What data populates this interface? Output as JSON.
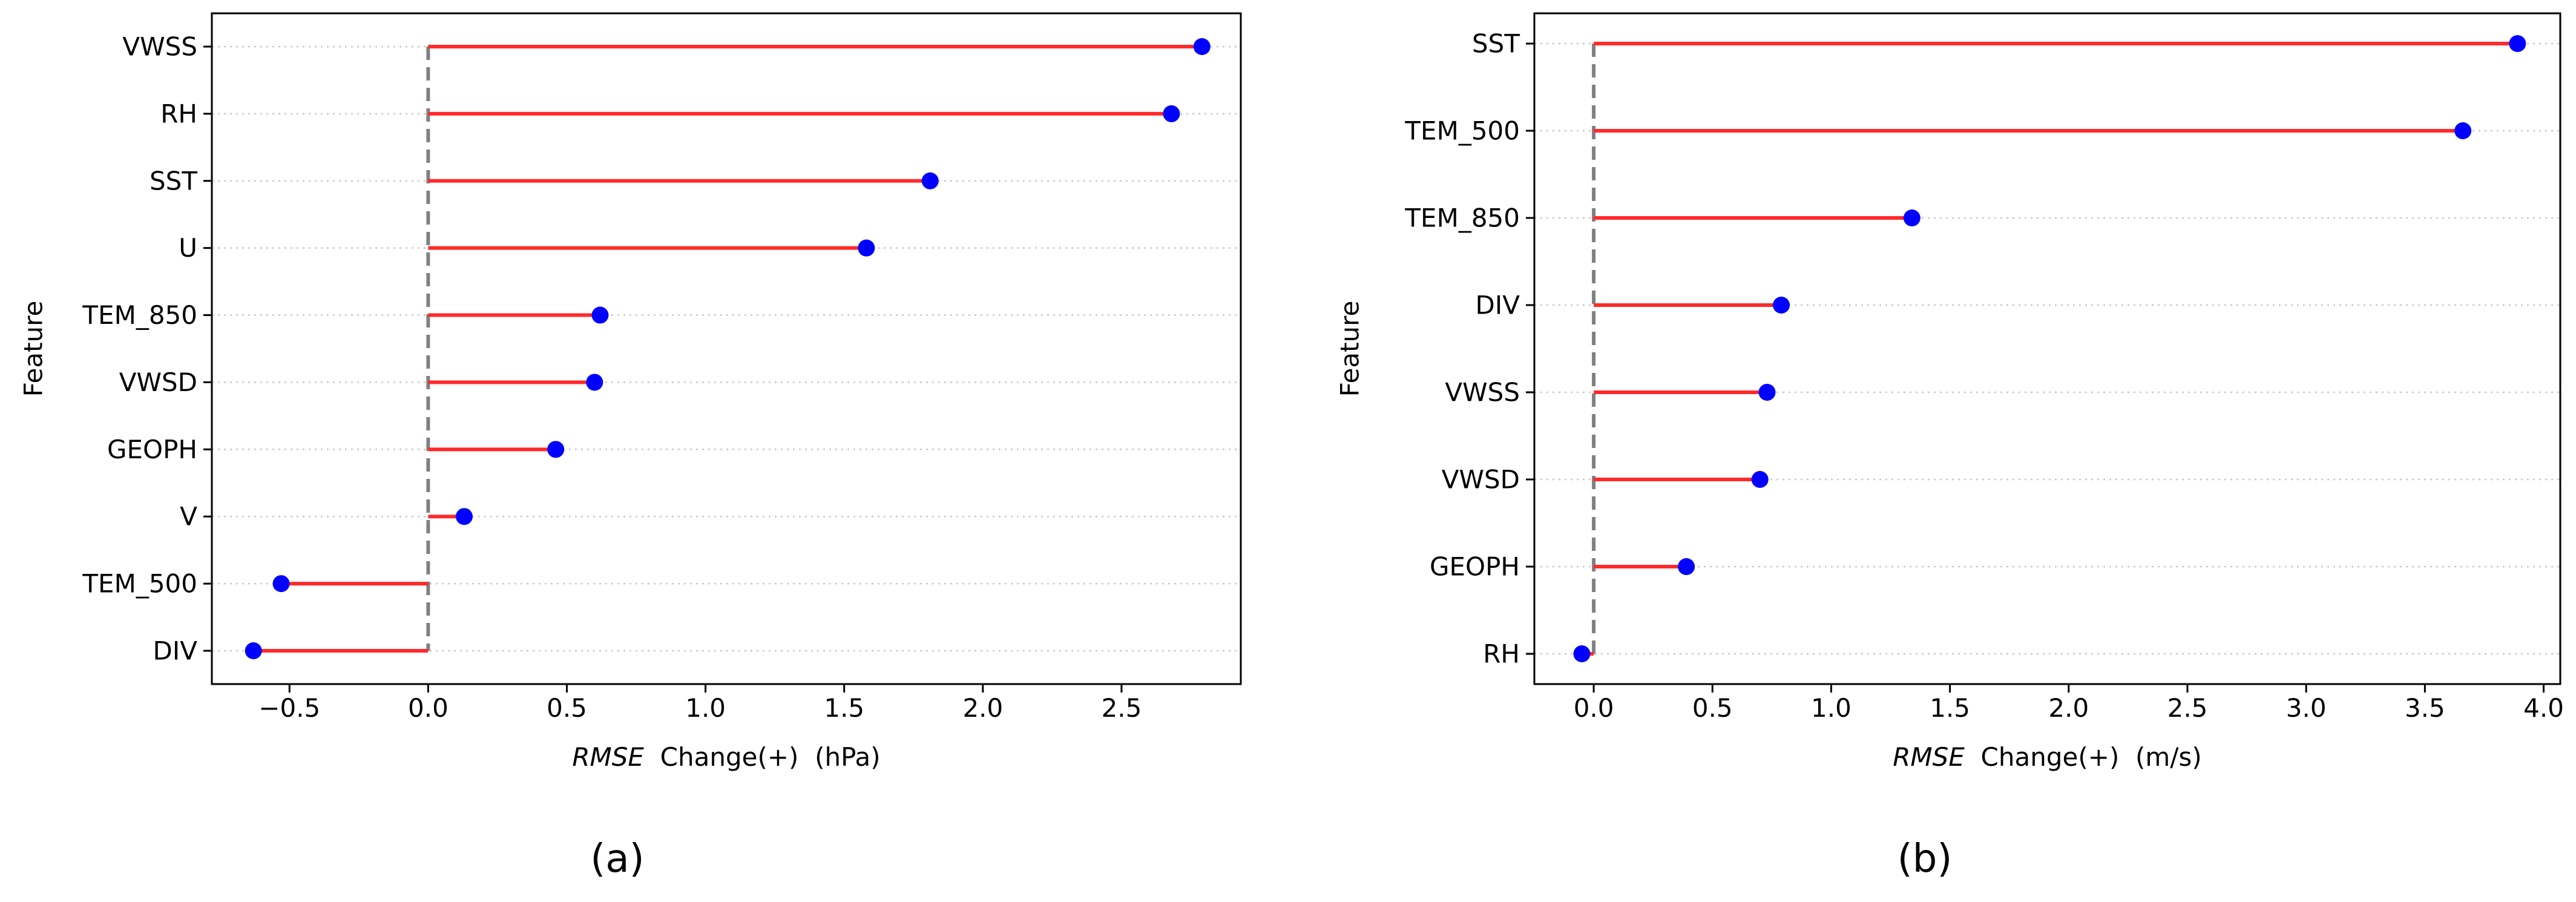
{
  "chart_data": [
    {
      "type": "lollipop",
      "panel_label": "(a)",
      "title": "",
      "xlabel_italic": "RMSE",
      "xlabel_rest": "Change(+)  (hPa)",
      "ylabel": "Feature",
      "xlim": [
        -0.78,
        2.93
      ],
      "xticks": [
        -0.5,
        0.0,
        0.5,
        1.0,
        1.5,
        2.0,
        2.5
      ],
      "xtick_labels": [
        "−0.5",
        "0.0",
        "0.5",
        "1.0",
        "1.5",
        "2.0",
        "2.5"
      ],
      "baseline": 0.0,
      "grid": "horizontal-dotted",
      "categories": [
        "VWSS",
        "RH",
        "SST",
        "U",
        "TEM_850",
        "VWSD",
        "GEOPH",
        "V",
        "TEM_500",
        "DIV"
      ],
      "values": [
        2.79,
        2.68,
        1.81,
        1.58,
        0.62,
        0.6,
        0.46,
        0.13,
        -0.53,
        -0.63
      ]
    },
    {
      "type": "lollipop",
      "panel_label": "(b)",
      "title": "",
      "xlabel_italic": "RMSE",
      "xlabel_rest": "Change(+)  (m/s)",
      "ylabel": "Feature",
      "xlim": [
        -0.25,
        4.07
      ],
      "xticks": [
        0.0,
        0.5,
        1.0,
        1.5,
        2.0,
        2.5,
        3.0,
        3.5,
        4.0
      ],
      "xtick_labels": [
        "0.0",
        "0.5",
        "1.0",
        "1.5",
        "2.0",
        "2.5",
        "3.0",
        "3.5",
        "4.0"
      ],
      "baseline": 0.0,
      "grid": "horizontal-dotted",
      "categories": [
        "SST",
        "TEM_500",
        "TEM_850",
        "DIV",
        "VWSS",
        "VWSD",
        "GEOPH",
        "RH"
      ],
      "values": [
        3.89,
        3.66,
        1.34,
        0.79,
        0.73,
        0.7,
        0.39,
        -0.05
      ]
    }
  ],
  "colors": {
    "stem": "#ff2a2a",
    "marker": "#0000ff",
    "baseline": "#808080",
    "grid": "#c8c8c8",
    "axis": "#000000"
  }
}
